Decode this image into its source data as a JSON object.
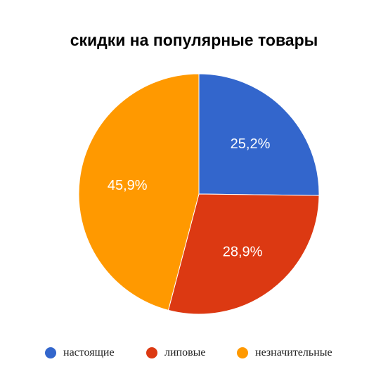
{
  "chart_data": {
    "type": "pie",
    "title": "скидки на популярные товары",
    "slices": [
      {
        "name": "настоящие",
        "value": 25.2,
        "label": "25,2%",
        "color": "#3366cc"
      },
      {
        "name": "липовые",
        "value": 28.9,
        "label": "28,9%",
        "color": "#dc3912"
      },
      {
        "name": "незначительные",
        "value": 45.9,
        "label": "45,9%",
        "color": "#ff9900"
      }
    ],
    "legend_position": "bottom",
    "start_angle": "top, clockwise"
  }
}
